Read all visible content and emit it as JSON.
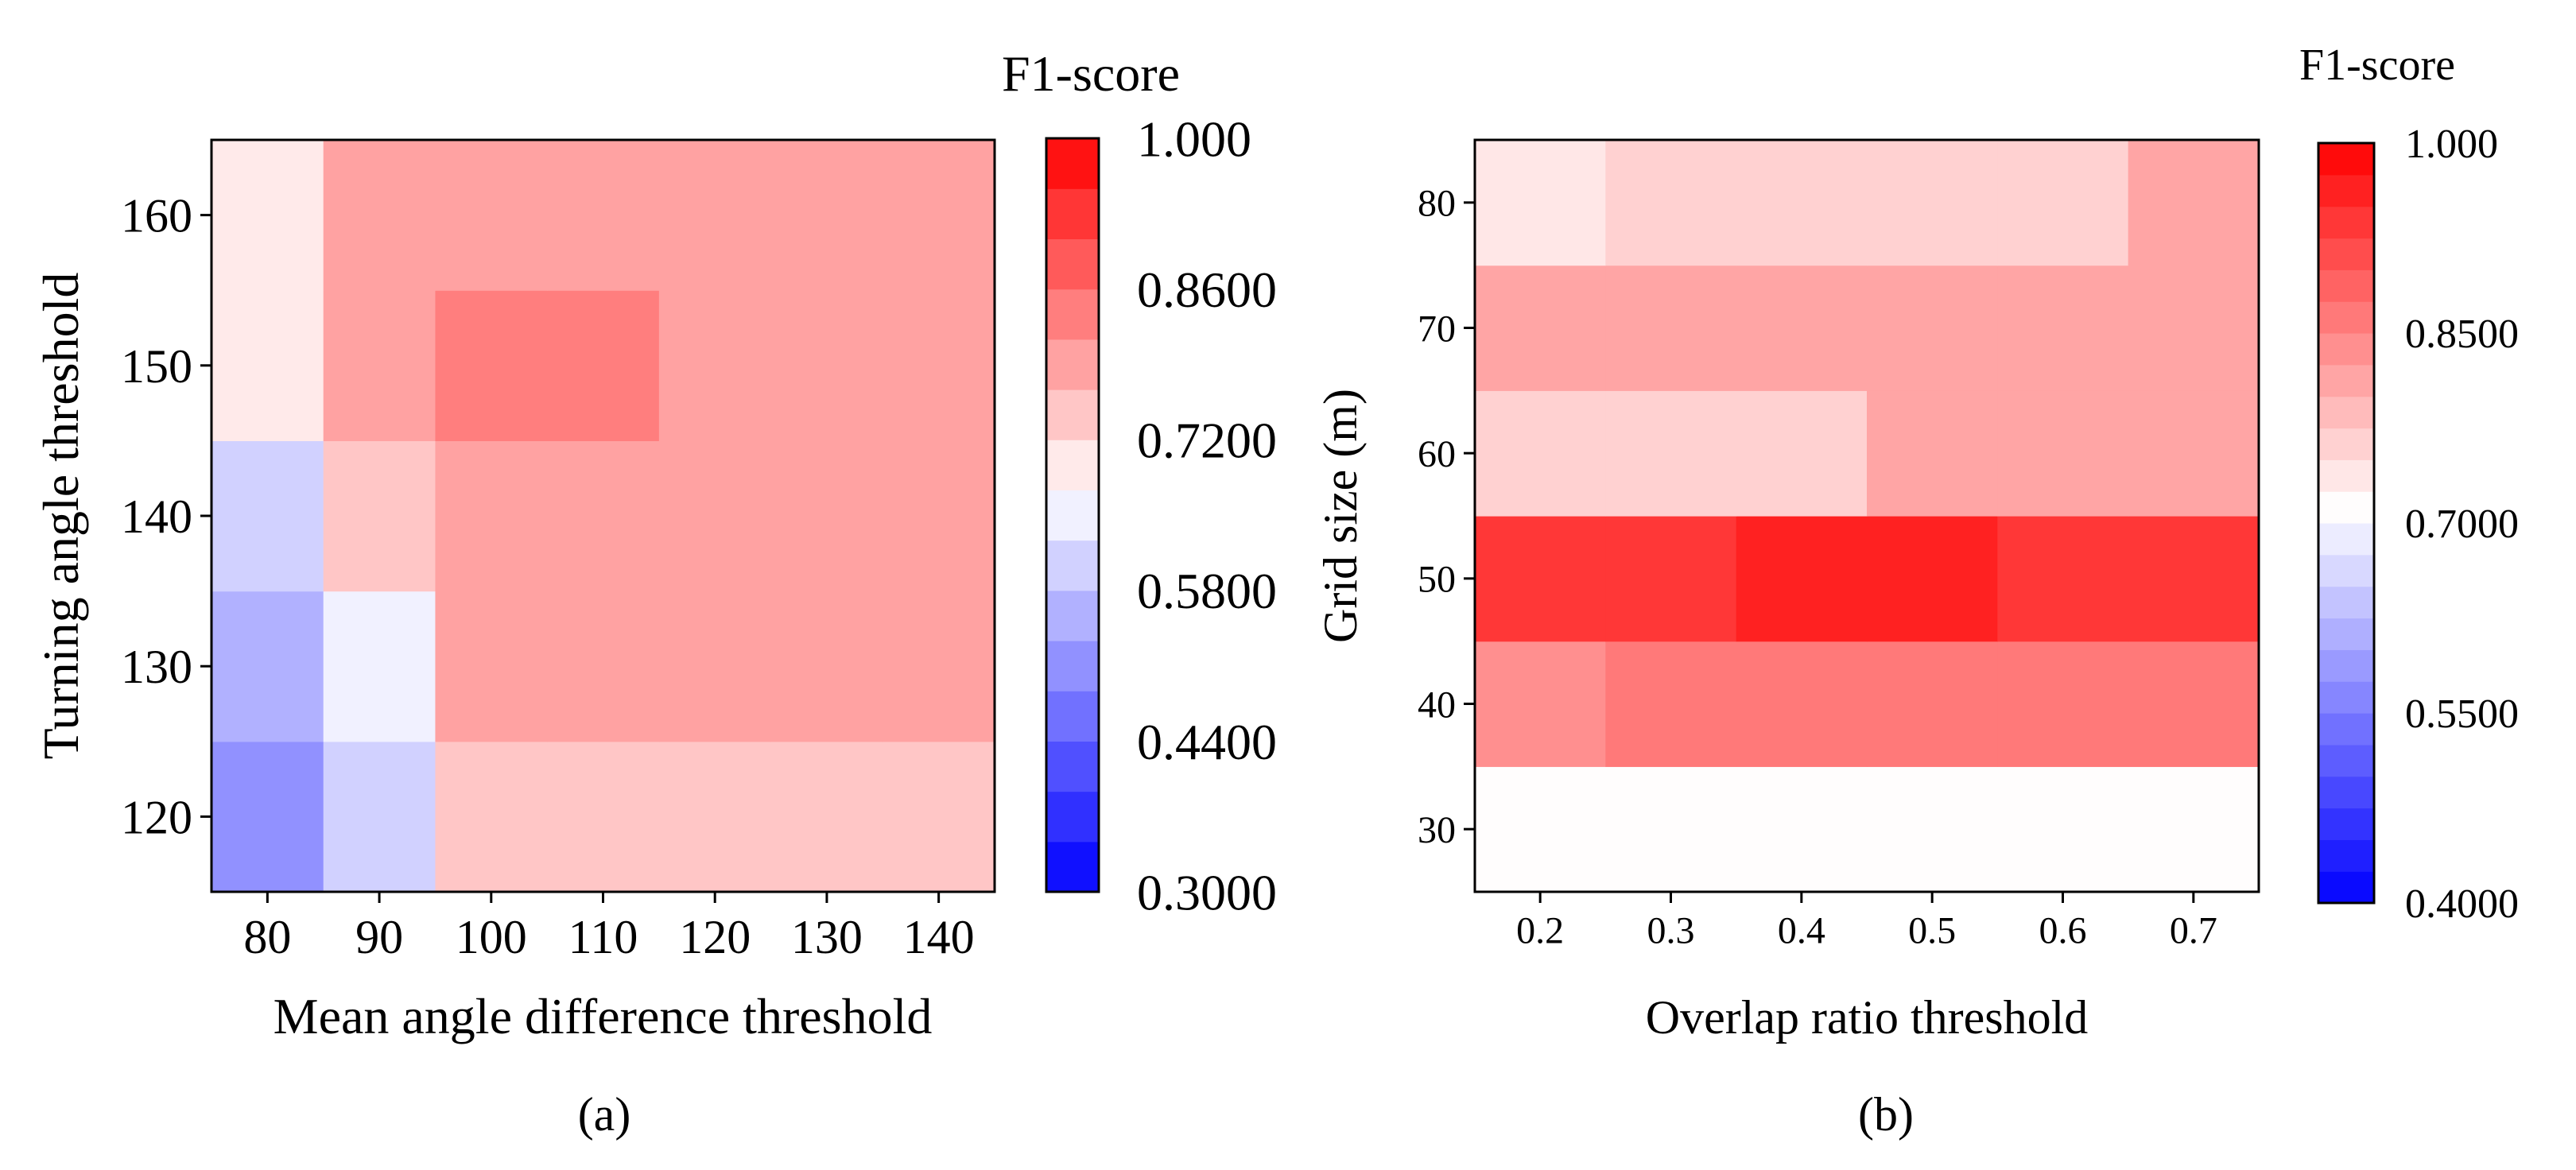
{
  "chart_data": [
    {
      "type": "heatmap",
      "panel_label": "(a)",
      "xlabel": "Mean angle difference threshold",
      "ylabel": "Turning angle threshold",
      "x": [
        80,
        90,
        100,
        110,
        120,
        130,
        140
      ],
      "x_tick_labels": [
        "80",
        "90",
        "100",
        "110",
        "120",
        "130",
        "140"
      ],
      "y": [
        120,
        130,
        140,
        150,
        160
      ],
      "y_tick_labels": [
        "120",
        "130",
        "140",
        "150",
        "160"
      ],
      "values": [
        [
          0.52,
          0.62,
          0.76,
          0.76,
          0.76,
          0.76,
          0.76
        ],
        [
          0.55,
          0.67,
          0.79,
          0.79,
          0.79,
          0.79,
          0.79
        ],
        [
          0.62,
          0.74,
          0.81,
          0.81,
          0.81,
          0.79,
          0.79
        ],
        [
          0.68,
          0.79,
          0.84,
          0.84,
          0.81,
          0.81,
          0.81
        ],
        [
          0.68,
          0.79,
          0.81,
          0.81,
          0.81,
          0.78,
          0.78
        ]
      ],
      "colorbar": {
        "title": "F1-score",
        "min": 0.3,
        "center": 0.67,
        "max": 1.0,
        "levels": 15,
        "tick_labels": [
          "1.000",
          "0.8600",
          "0.7200",
          "0.5800",
          "0.4400",
          "0.3000"
        ]
      }
    },
    {
      "type": "heatmap",
      "panel_label": "(b)",
      "xlabel": "Overlap ratio threshold",
      "ylabel": "Grid size (m)",
      "x": [
        0.2,
        0.3,
        0.4,
        0.5,
        0.6,
        0.7
      ],
      "x_tick_labels": [
        "0.2",
        "0.3",
        "0.4",
        "0.5",
        "0.6",
        "0.7"
      ],
      "y": [
        30,
        40,
        50,
        60,
        70,
        80
      ],
      "y_tick_labels": [
        "30",
        "40",
        "50",
        "60",
        "70",
        "80"
      ],
      "values": [
        [
          0.71,
          0.71,
          0.71,
          0.71,
          0.71,
          0.71
        ],
        [
          0.83,
          0.86,
          0.87,
          0.87,
          0.87,
          0.86
        ],
        [
          0.93,
          0.93,
          0.96,
          0.96,
          0.93,
          0.93
        ],
        [
          0.76,
          0.76,
          0.76,
          0.8,
          0.8,
          0.8
        ],
        [
          0.8,
          0.8,
          0.8,
          0.82,
          0.82,
          0.82
        ],
        [
          0.74,
          0.76,
          0.76,
          0.76,
          0.76,
          0.8
        ]
      ],
      "colorbar": {
        "title": "F1-score",
        "min": 0.4,
        "center": 0.71,
        "max": 1.0,
        "levels": 24,
        "tick_labels": [
          "1.000",
          "0.8500",
          "0.7000",
          "0.5500",
          "0.4000"
        ]
      }
    }
  ]
}
